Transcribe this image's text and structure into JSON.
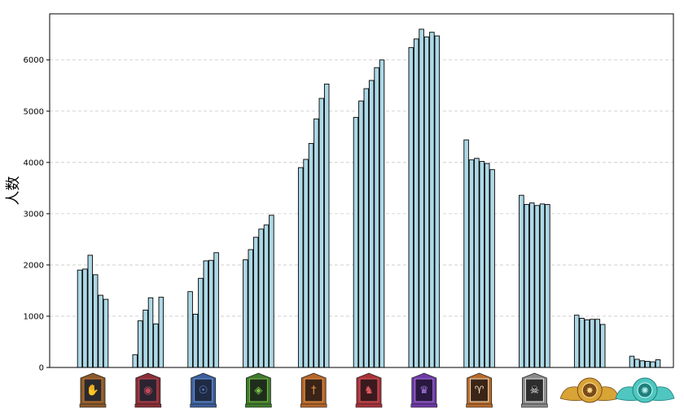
{
  "chart_data": {
    "type": "bar",
    "ylabel": "人数",
    "xlabel": "",
    "title": "",
    "ylim": [
      0,
      6900
    ],
    "yticks": [
      0,
      1000,
      2000,
      3000,
      4000,
      5000,
      6000
    ],
    "grid": "horizontal-dashed",
    "bar_color": "#add8e6",
    "bar_edge_color": "#000000",
    "categories": [
      "rank-1-emblem",
      "rank-2-emblem",
      "rank-3-emblem",
      "rank-4-emblem",
      "rank-5-emblem",
      "rank-6-emblem",
      "rank-7-emblem",
      "rank-8-emblem",
      "rank-9-emblem",
      "rank-10-emblem",
      "rank-11-emblem"
    ],
    "groups": [
      [
        1900,
        1920,
        2190,
        1810,
        1410,
        1330
      ],
      [
        250,
        910,
        1120,
        1360,
        850,
        1370
      ],
      [
        1480,
        1040,
        1740,
        2080,
        2090,
        2240
      ],
      [
        2100,
        2300,
        2540,
        2700,
        2780,
        2970
      ],
      [
        3900,
        4060,
        4370,
        4850,
        5250,
        5530
      ],
      [
        4880,
        5200,
        5440,
        5600,
        5850,
        6000
      ],
      [
        6240,
        6410,
        6600,
        6450,
        6540,
        6470
      ],
      [
        4440,
        4050,
        4080,
        4020,
        3980,
        3860
      ],
      [
        3360,
        3180,
        3210,
        3160,
        3190,
        3180
      ],
      [
        1020,
        960,
        930,
        940,
        940,
        840
      ],
      [
        220,
        160,
        130,
        120,
        110,
        150
      ]
    ],
    "emblems": [
      {
        "name": "hand-emblem-icon",
        "frame": "#8a5a2b",
        "inner": "#2a2a2e",
        "accent": "#d07a2a",
        "glyph": "✋"
      },
      {
        "name": "eye-book-emblem-icon",
        "frame": "#8a2e35",
        "inner": "#2b2430",
        "accent": "#c0485a",
        "glyph": "◉"
      },
      {
        "name": "eye-flame-emblem-icon",
        "frame": "#3c5f9c",
        "inner": "#1f2a44",
        "accent": "#6d98d8",
        "glyph": "☉"
      },
      {
        "name": "demon-face-emblem-icon",
        "frame": "#3f7a2c",
        "inner": "#1f2e1c",
        "accent": "#7cc24a",
        "glyph": "◈"
      },
      {
        "name": "sword-emblem-icon",
        "frame": "#b5652a",
        "inner": "#3a2418",
        "accent": "#e89848",
        "glyph": "†"
      },
      {
        "name": "rabbit-emblem-icon",
        "frame": "#a8323a",
        "inner": "#3a1a1e",
        "accent": "#e25a60",
        "glyph": "♞"
      },
      {
        "name": "crown-emblem-icon",
        "frame": "#6f3aa6",
        "inner": "#2a1840",
        "accent": "#a678e0",
        "glyph": "♛"
      },
      {
        "name": "ram-skull-emblem-icon",
        "frame": "#b86a2a",
        "inner": "#3a2516",
        "accent": "#f2e2c8",
        "glyph": "♈"
      },
      {
        "name": "reaper-emblem-icon",
        "frame": "#8a8a8a",
        "inner": "#2e2e2e",
        "accent": "#e8e8e8",
        "glyph": "☠"
      },
      {
        "name": "golden-winged-emblem-icon",
        "frame": "#d9a436",
        "inner": "#7a4a1a",
        "accent": "#f6d98a",
        "glyph": "✸"
      },
      {
        "name": "cyan-winged-emblem-icon",
        "frame": "#4fc7c0",
        "inner": "#1f7f7c",
        "accent": "#b8f4ef",
        "glyph": "✺"
      }
    ]
  }
}
